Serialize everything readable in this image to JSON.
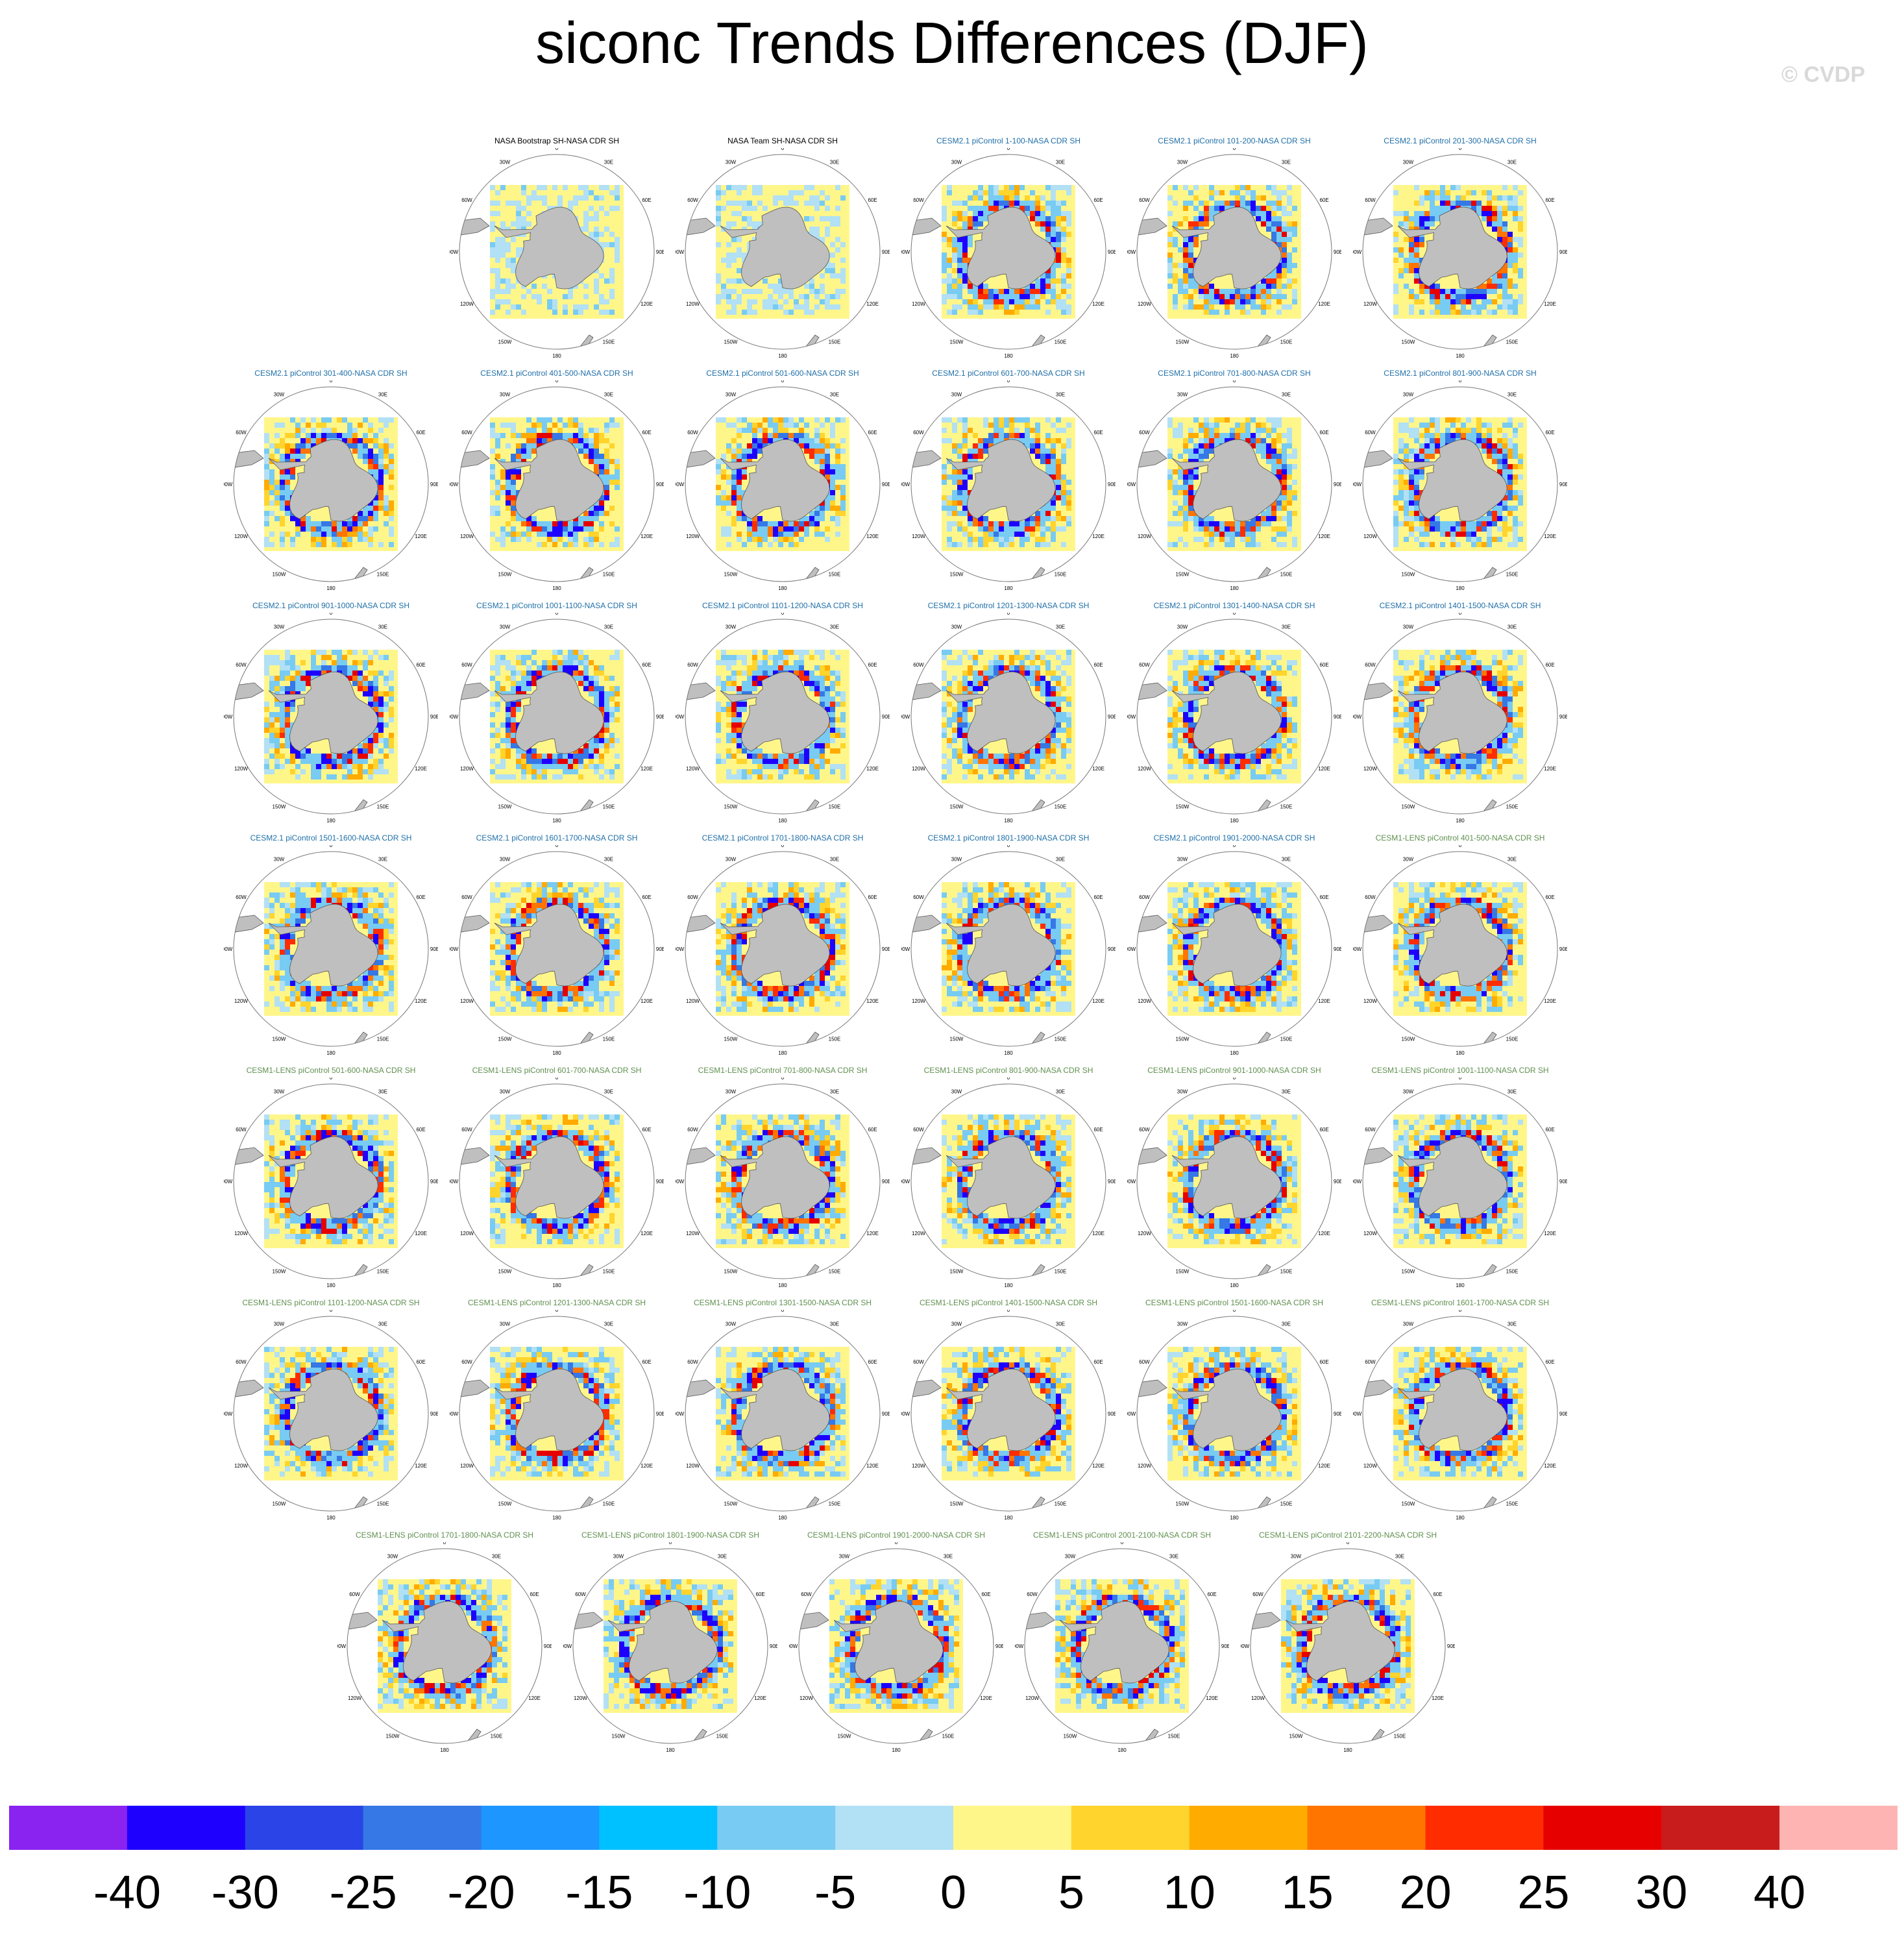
{
  "title": "siconc Trends Differences (DJF)",
  "watermark": "© CVDP",
  "map_labels": {
    "n0": "0",
    "n30e": "30E",
    "n60e": "60E",
    "n90e": "90E",
    "n120e": "120E",
    "n150e": "150E",
    "n180": "180",
    "n150w": "150W",
    "n120w": "120W",
    "n90w": "90W",
    "n60w": "60W",
    "n30w": "30W"
  },
  "panels": [
    {
      "title": "NASA Bootstrap SH-NASA CDR SH",
      "color": "#000000"
    },
    {
      "title": "NASA Team SH-NASA CDR SH",
      "color": "#000000"
    },
    {
      "title": "CESM2.1 piControl 1-100-NASA CDR SH",
      "color": "#1f6fa8"
    },
    {
      "title": "CESM2.1 piControl 101-200-NASA CDR SH",
      "color": "#1f6fa8"
    },
    {
      "title": "CESM2.1 piControl 201-300-NASA CDR SH",
      "color": "#1f6fa8"
    },
    {
      "title": "CESM2.1 piControl 301-400-NASA CDR SH",
      "color": "#1f6fa8"
    },
    {
      "title": "CESM2.1 piControl 401-500-NASA CDR SH",
      "color": "#1f6fa8"
    },
    {
      "title": "CESM2.1 piControl 501-600-NASA CDR SH",
      "color": "#1f6fa8"
    },
    {
      "title": "CESM2.1 piControl 601-700-NASA CDR SH",
      "color": "#1f6fa8"
    },
    {
      "title": "CESM2.1 piControl 701-800-NASA CDR SH",
      "color": "#1f6fa8"
    },
    {
      "title": "CESM2.1 piControl 801-900-NASA CDR SH",
      "color": "#1f6fa8"
    },
    {
      "title": "CESM2.1 piControl 901-1000-NASA CDR SH",
      "color": "#1f6fa8"
    },
    {
      "title": "CESM2.1 piControl 1001-1100-NASA CDR SH",
      "color": "#1f6fa8"
    },
    {
      "title": "CESM2.1 piControl 1101-1200-NASA CDR SH",
      "color": "#1f6fa8"
    },
    {
      "title": "CESM2.1 piControl 1201-1300-NASA CDR SH",
      "color": "#1f6fa8"
    },
    {
      "title": "CESM2.1 piControl 1301-1400-NASA CDR SH",
      "color": "#1f6fa8"
    },
    {
      "title": "CESM2.1 piControl 1401-1500-NASA CDR SH",
      "color": "#1f6fa8"
    },
    {
      "title": "CESM2.1 piControl 1501-1600-NASA CDR SH",
      "color": "#1f6fa8"
    },
    {
      "title": "CESM2.1 piControl 1601-1700-NASA CDR SH",
      "color": "#1f6fa8"
    },
    {
      "title": "CESM2.1 piControl 1701-1800-NASA CDR SH",
      "color": "#1f6fa8"
    },
    {
      "title": "CESM2.1 piControl 1801-1900-NASA CDR SH",
      "color": "#1f6fa8"
    },
    {
      "title": "CESM2.1 piControl 1901-2000-NASA CDR SH",
      "color": "#1f6fa8"
    },
    {
      "title": "CESM1-LENS piControl 401-500-NASA CDR SH",
      "color": "#5f8f4f"
    },
    {
      "title": "CESM1-LENS piControl 501-600-NASA CDR SH",
      "color": "#5f8f4f"
    },
    {
      "title": "CESM1-LENS piControl 601-700-NASA CDR SH",
      "color": "#5f8f4f"
    },
    {
      "title": "CESM1-LENS piControl 701-800-NASA CDR SH",
      "color": "#5f8f4f"
    },
    {
      "title": "CESM1-LENS piControl 801-900-NASA CDR SH",
      "color": "#5f8f4f"
    },
    {
      "title": "CESM1-LENS piControl 901-1000-NASA CDR SH",
      "color": "#5f8f4f"
    },
    {
      "title": "CESM1-LENS piControl 1001-1100-NASA CDR SH",
      "color": "#5f8f4f"
    },
    {
      "title": "CESM1-LENS piControl 1101-1200-NASA CDR SH",
      "color": "#5f8f4f"
    },
    {
      "title": "CESM1-LENS piControl 1201-1300-NASA CDR SH",
      "color": "#5f8f4f"
    },
    {
      "title": "CESM1-LENS piControl 1301-1500-NASA CDR SH",
      "color": "#5f8f4f"
    },
    {
      "title": "CESM1-LENS piControl 1401-1500-NASA CDR SH",
      "color": "#5f8f4f"
    },
    {
      "title": "CESM1-LENS piControl 1501-1600-NASA CDR SH",
      "color": "#5f8f4f"
    },
    {
      "title": "CESM1-LENS piControl 1601-1700-NASA CDR SH",
      "color": "#5f8f4f"
    },
    {
      "title": "CESM1-LENS piControl 1701-1800-NASA CDR SH",
      "color": "#5f8f4f"
    },
    {
      "title": "CESM1-LENS piControl 1801-1900-NASA CDR SH",
      "color": "#5f8f4f"
    },
    {
      "title": "CESM1-LENS piControl 1901-2000-NASA CDR SH",
      "color": "#5f8f4f"
    },
    {
      "title": "CESM1-LENS piControl 2001-2100-NASA CDR SH",
      "color": "#5f8f4f"
    },
    {
      "title": "CESM1-LENS piControl 2101-2200-NASA CDR SH",
      "color": "#5f8f4f"
    }
  ],
  "colorbar": {
    "colors": [
      "#8a22f0",
      "#1e00ff",
      "#2a44e8",
      "#3578e6",
      "#1e96ff",
      "#00c1ff",
      "#78cbf2",
      "#b2e0f4",
      "#fff68a",
      "#ffd42c",
      "#ffab00",
      "#ff7500",
      "#ff2c00",
      "#e60000",
      "#c81c1c",
      "#ffb4b4"
    ],
    "labels": [
      "-40",
      "-30",
      "-25",
      "-20",
      "-15",
      "-10",
      "-5",
      "0",
      "5",
      "10",
      "15",
      "20",
      "25",
      "30",
      "40"
    ]
  }
}
